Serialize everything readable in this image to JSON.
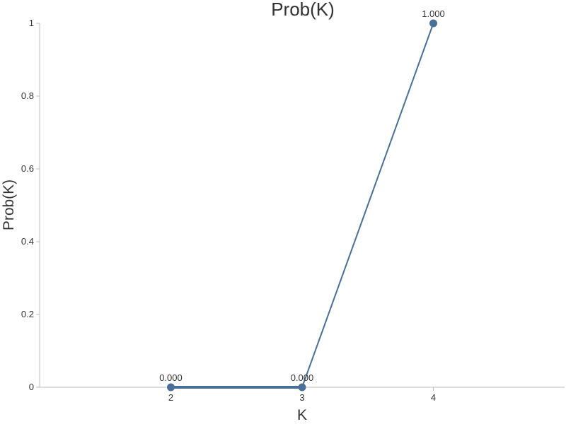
{
  "chart_data": {
    "type": "line",
    "title": "Prob(K)",
    "xlabel": "K",
    "ylabel": "Prob(K)",
    "x": [
      2,
      3,
      4
    ],
    "xticks": [
      "2",
      "3",
      "4"
    ],
    "xlim": [
      1,
      5
    ],
    "ylim": [
      0,
      1
    ],
    "yticks": [
      "0",
      "0.2",
      "0.4",
      "0.6",
      "0.8",
      "1"
    ],
    "yticks_values": [
      0,
      0.2,
      0.4,
      0.6,
      0.8,
      1
    ],
    "series": [
      {
        "values": [
          0,
          0,
          1
        ],
        "labels": [
          "0.000",
          "0.000",
          "1.000"
        ]
      }
    ],
    "grid": false,
    "color": "#4a6f96"
  }
}
